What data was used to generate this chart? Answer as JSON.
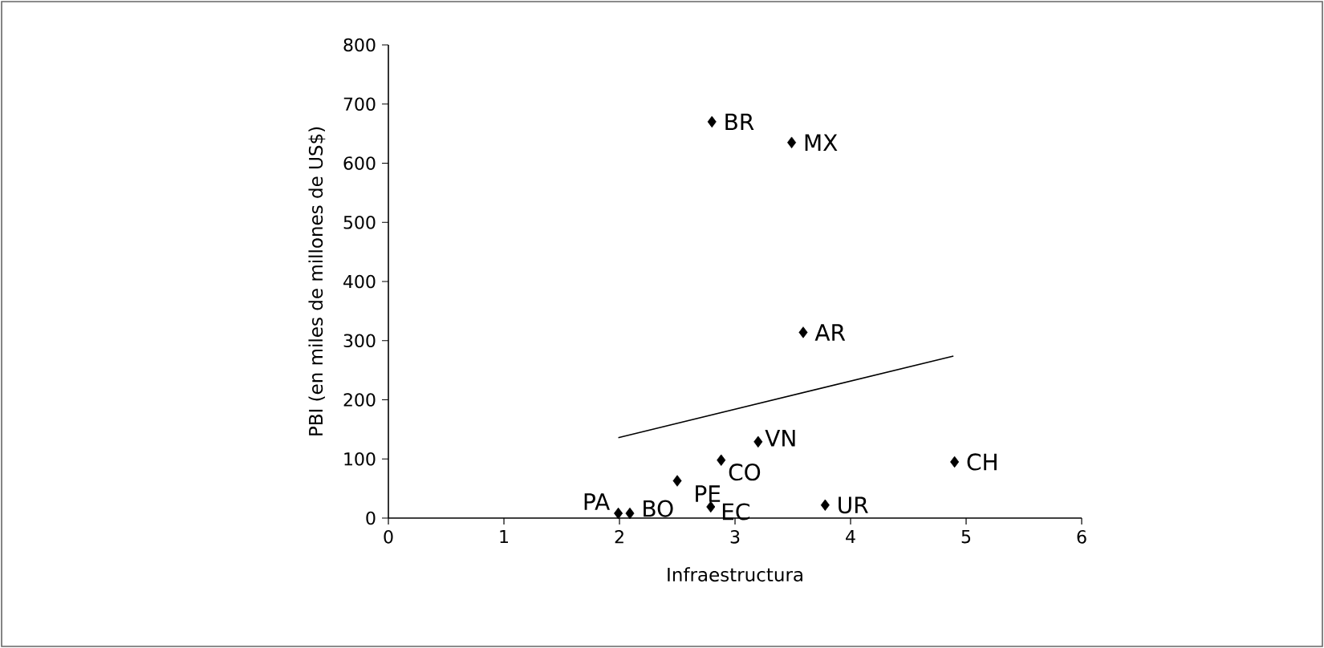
{
  "chart_data": {
    "type": "scatter",
    "xlabel": "Infraestructura",
    "ylabel": "PBI (en miles de millones de US$)",
    "xlim": [
      0,
      6
    ],
    "xticks": [
      0,
      1,
      2,
      3,
      4,
      5,
      6
    ],
    "ylim": [
      0,
      800
    ],
    "yticks": [
      0,
      100,
      200,
      300,
      400,
      500,
      600,
      700,
      800
    ],
    "grid": false,
    "series": [
      {
        "marker": "diamond",
        "color": "#000000",
        "x": [
          2.8,
          3.49,
          3.59,
          3.2,
          2.88,
          4.9,
          2.5,
          2.79,
          3.78,
          1.99,
          2.09
        ],
        "values": [
          670,
          635,
          314,
          129,
          98,
          95,
          63,
          19,
          22,
          8,
          8
        ]
      },
      {
        "type": "line",
        "color": "#000000",
        "x": [
          1.99,
          4.89
        ],
        "values": [
          136,
          274
        ]
      }
    ],
    "annotations": [
      {
        "text": "BR",
        "x": 2.8,
        "y": 670
      },
      {
        "text": "MX",
        "x": 3.49,
        "y": 635
      },
      {
        "text": "AR",
        "x": 3.59,
        "y": 314
      },
      {
        "text": "VN",
        "x": 3.2,
        "y": 129
      },
      {
        "text": "CO",
        "x": 2.88,
        "y": 98
      },
      {
        "text": "CH",
        "x": 4.9,
        "y": 95
      },
      {
        "text": "PE",
        "x": 2.5,
        "y": 63
      },
      {
        "text": "EC",
        "x": 2.79,
        "y": 19
      },
      {
        "text": "UR",
        "x": 3.78,
        "y": 22
      },
      {
        "text": "PA",
        "x": 1.99,
        "y": 8
      },
      {
        "text": "BO",
        "x": 2.09,
        "y": 8
      }
    ]
  }
}
